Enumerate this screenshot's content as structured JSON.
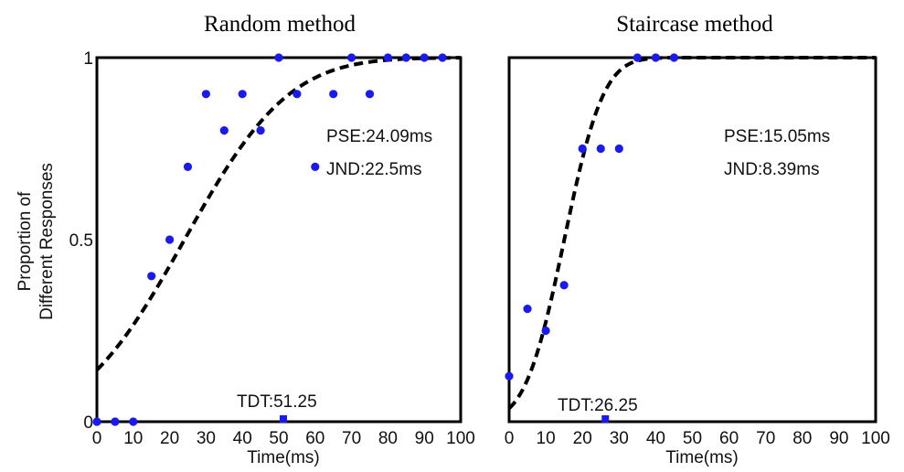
{
  "ylabel_lines": [
    "Proportion of",
    "Different Responses"
  ],
  "chart_data": [
    {
      "type": "scatter",
      "title": "Random method",
      "xlabel": "Time(ms)",
      "ylabel": "Proportion of Different Responses",
      "xlim": [
        0,
        100
      ],
      "ylim": [
        0,
        1
      ],
      "xticks": [
        0,
        10,
        20,
        30,
        40,
        50,
        60,
        70,
        80,
        90,
        100
      ],
      "yticks": [
        0,
        0.5,
        1
      ],
      "ytick_labels": [
        "0",
        "0.5",
        "1"
      ],
      "grid": false,
      "points": [
        {
          "x": 0,
          "y": 0
        },
        {
          "x": 5,
          "y": 0
        },
        {
          "x": 10,
          "y": 0
        },
        {
          "x": 15,
          "y": 0.4
        },
        {
          "x": 20,
          "y": 0.5
        },
        {
          "x": 25,
          "y": 0.7
        },
        {
          "x": 30,
          "y": 0.9
        },
        {
          "x": 35,
          "y": 0.8
        },
        {
          "x": 40,
          "y": 0.9
        },
        {
          "x": 45,
          "y": 0.8
        },
        {
          "x": 50,
          "y": 1.0
        },
        {
          "x": 55,
          "y": 0.9
        },
        {
          "x": 60,
          "y": 0.7
        },
        {
          "x": 65,
          "y": 0.9
        },
        {
          "x": 70,
          "y": 1.0
        },
        {
          "x": 75,
          "y": 0.9
        },
        {
          "x": 80,
          "y": 1.0
        },
        {
          "x": 85,
          "y": 1.0
        },
        {
          "x": 90,
          "y": 1.0
        },
        {
          "x": 95,
          "y": 1.0
        }
      ],
      "fit": {
        "mu": 24.09,
        "sigma": 22.5
      },
      "threshold_marker": {
        "x": 51.25,
        "y": 0
      },
      "annotations": {
        "pse": "PSE:24.09ms",
        "jnd": "JND:22.5ms",
        "tdt": "TDT:51.25"
      },
      "colors": {
        "points": "#1a1aee",
        "fit": "#000000"
      }
    },
    {
      "type": "scatter",
      "title": "Staircase method",
      "xlabel": "Time(ms)",
      "xlim": [
        0,
        100
      ],
      "ylim": [
        0,
        1
      ],
      "xticks": [
        0,
        10,
        20,
        30,
        40,
        50,
        60,
        70,
        80,
        90,
        100
      ],
      "grid": false,
      "points": [
        {
          "x": 0,
          "y": 0.125
        },
        {
          "x": 5,
          "y": 0.31
        },
        {
          "x": 10,
          "y": 0.25
        },
        {
          "x": 15,
          "y": 0.375
        },
        {
          "x": 20,
          "y": 0.75
        },
        {
          "x": 25,
          "y": 0.75
        },
        {
          "x": 30,
          "y": 0.75
        },
        {
          "x": 35,
          "y": 1.0
        },
        {
          "x": 40,
          "y": 1.0
        },
        {
          "x": 45,
          "y": 1.0
        }
      ],
      "fit": {
        "mu": 15.05,
        "sigma": 8.39
      },
      "threshold_marker": {
        "x": 26.25,
        "y": 0
      },
      "annotations": {
        "pse": "PSE:15.05ms",
        "jnd": "JND:8.39ms",
        "tdt": "TDT:26.25"
      },
      "colors": {
        "points": "#1a1aee",
        "fit": "#000000"
      }
    }
  ]
}
